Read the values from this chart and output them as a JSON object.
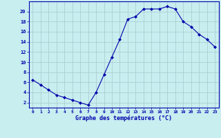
{
  "x": [
    0,
    1,
    2,
    3,
    4,
    5,
    6,
    7,
    8,
    9,
    10,
    11,
    12,
    13,
    14,
    15,
    16,
    17,
    18,
    19,
    20,
    21,
    22,
    23
  ],
  "y": [
    6.5,
    5.5,
    4.5,
    3.5,
    3.0,
    2.5,
    2.0,
    1.5,
    4.0,
    7.5,
    11.0,
    14.5,
    18.5,
    19.0,
    20.5,
    20.5,
    20.5,
    21.0,
    20.5,
    18.0,
    17.0,
    15.5,
    14.5,
    13.0
  ],
  "line_color": "#0000AA",
  "marker": "D",
  "marker_size": 2.0,
  "bg_color": "#C8EEF0",
  "grid_color": "#A8C8CC",
  "xlabel": "Graphe des températures (°C)",
  "xlabel_color": "#0000AA",
  "tick_color": "#0000AA",
  "ylim": [
    1,
    22
  ],
  "xlim": [
    -0.5,
    23.5
  ],
  "yticks": [
    2,
    4,
    6,
    8,
    10,
    12,
    14,
    16,
    18,
    20
  ],
  "xticks": [
    0,
    1,
    2,
    3,
    4,
    5,
    6,
    7,
    8,
    9,
    10,
    11,
    12,
    13,
    14,
    15,
    16,
    17,
    18,
    19,
    20,
    21,
    22,
    23
  ],
  "xtick_labels": [
    "0",
    "1",
    "2",
    "3",
    "4",
    "5",
    "6",
    "7",
    "8",
    "9",
    "10",
    "11",
    "12",
    "13",
    "14",
    "15",
    "16",
    "17",
    "18",
    "19",
    "20",
    "21",
    "22",
    "23"
  ]
}
